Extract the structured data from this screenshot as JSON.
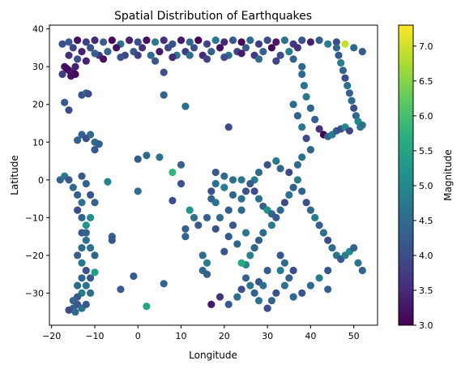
{
  "chart_data": {
    "type": "scatter",
    "title": "Spatial Distribution of Earthquakes",
    "xlabel": "Longitude",
    "ylabel": "Latitude",
    "xlim": [
      -20.5,
      55.5
    ],
    "ylim": [
      -38.5,
      41.0
    ],
    "xticks": [
      -20,
      -10,
      0,
      10,
      20,
      30,
      40,
      50
    ],
    "yticks": [
      -30,
      -20,
      -10,
      0,
      10,
      20,
      30,
      40
    ],
    "grid": false,
    "colormap": "viridis",
    "colorbar": {
      "label": "Magnitude",
      "range": [
        3.0,
        7.3
      ],
      "ticks": [
        3.0,
        3.5,
        4.0,
        4.5,
        5.0,
        5.5,
        6.0,
        6.5,
        7.0
      ],
      "tick_labels": [
        "3.0",
        "3.5",
        "4.0",
        "4.5",
        "5.0",
        "5.5",
        "6.0",
        "6.5",
        "7.0"
      ]
    },
    "points": [
      [
        -17.5,
        36,
        4.0
      ],
      [
        -16,
        36.5,
        4.2
      ],
      [
        -14,
        37,
        3.2
      ],
      [
        -12,
        36.5,
        3.8
      ],
      [
        -10,
        37,
        3.5
      ],
      [
        -8,
        36.5,
        4.3
      ],
      [
        -6,
        37,
        3.1
      ],
      [
        -4,
        36,
        4.6
      ],
      [
        -2,
        37,
        3.4
      ],
      [
        0,
        36.5,
        4.0
      ],
      [
        2,
        37,
        3.2
      ],
      [
        4,
        36.5,
        4.8
      ],
      [
        6,
        37,
        3.6
      ],
      [
        8,
        36,
        4.1
      ],
      [
        10,
        37,
        3.3
      ],
      [
        12,
        36.5,
        4.4
      ],
      [
        14,
        37,
        3.0
      ],
      [
        16,
        36,
        3.9
      ],
      [
        18,
        37,
        4.7
      ],
      [
        20,
        36.5,
        3.5
      ],
      [
        22,
        37,
        4.2
      ],
      [
        24,
        36.5,
        3.1
      ],
      [
        26,
        37,
        4.5
      ],
      [
        28,
        36,
        3.8
      ],
      [
        30,
        37,
        4.0
      ],
      [
        32,
        36.5,
        3.3
      ],
      [
        34,
        37,
        4.6
      ],
      [
        36,
        36,
        3.7
      ],
      [
        38,
        37,
        4.1
      ],
      [
        40,
        36.5,
        3.4
      ],
      [
        42,
        37,
        4.3
      ],
      [
        44,
        36,
        4.8
      ],
      [
        46,
        36.5,
        4.0
      ],
      [
        48,
        36,
        6.9
      ],
      [
        50,
        35,
        4.5
      ],
      [
        52,
        34,
        4.2
      ],
      [
        -15,
        35,
        3.9
      ],
      [
        -13,
        34,
        3.4
      ],
      [
        -11,
        35,
        4.1
      ],
      [
        -9,
        33,
        3.7
      ],
      [
        -7,
        34,
        4.4
      ],
      [
        -5,
        35,
        3.2
      ],
      [
        -3,
        33,
        3.9
      ],
      [
        -1,
        34,
        4.2
      ],
      [
        1,
        35,
        3.6
      ],
      [
        3,
        33,
        4.5
      ],
      [
        5,
        34,
        3.3
      ],
      [
        7,
        35,
        4.0
      ],
      [
        9,
        33,
        4.7
      ],
      [
        11,
        34,
        3.8
      ],
      [
        13,
        35,
        4.1
      ],
      [
        15,
        33,
        3.5
      ],
      [
        17,
        34,
        4.3
      ],
      [
        19,
        35,
        3.2
      ],
      [
        21,
        33,
        4.6
      ],
      [
        23,
        34,
        3.9
      ],
      [
        25,
        35,
        4.2
      ],
      [
        27,
        33,
        3.7
      ],
      [
        29,
        34,
        4.4
      ],
      [
        31,
        35,
        3.1
      ],
      [
        33,
        33,
        4.0
      ],
      [
        35,
        34,
        4.8
      ],
      [
        37,
        35,
        3.6
      ],
      [
        -16,
        33,
        3.6
      ],
      [
        -14,
        32,
        4.0
      ],
      [
        -12,
        31.5,
        3.4
      ],
      [
        -10,
        33.5,
        4.3
      ],
      [
        -8,
        32,
        3.2
      ],
      [
        -4,
        32.5,
        4.1
      ],
      [
        0,
        33,
        3.8
      ],
      [
        4,
        31.5,
        4.2
      ],
      [
        8,
        32.5,
        3.5
      ],
      [
        12,
        33,
        4.6
      ],
      [
        16,
        32,
        3.9
      ],
      [
        20,
        32.5,
        4.0
      ],
      [
        24,
        33.5,
        3.3
      ],
      [
        28,
        32,
        4.5
      ],
      [
        32,
        31.5,
        3.9
      ],
      [
        36,
        32,
        4.3
      ],
      [
        38,
        30,
        4.4
      ],
      [
        -17,
        30,
        3.3
      ],
      [
        -16,
        29,
        3.2
      ],
      [
        -15,
        28.5,
        3.3
      ],
      [
        -17.5,
        28,
        3.8
      ],
      [
        -16.5,
        29.5,
        3.1
      ],
      [
        -14.5,
        30,
        3.4
      ],
      [
        -15.5,
        27.5,
        3.2
      ],
      [
        -14.5,
        28,
        3.1
      ],
      [
        -17,
        20.5,
        4.2
      ],
      [
        -16,
        18.5,
        4.0
      ],
      [
        -13,
        22.5,
        4.1
      ],
      [
        -12,
        23,
        4.4
      ],
      [
        -11.5,
        22.8,
        4.0
      ],
      [
        6,
        28.5,
        4.1
      ],
      [
        6,
        22.5,
        4.3
      ],
      [
        11,
        19.5,
        4.6
      ],
      [
        46,
        35,
        4.5
      ],
      [
        46.5,
        33,
        4.2
      ],
      [
        47,
        31,
        4.8
      ],
      [
        47.5,
        29,
        4.4
      ],
      [
        48,
        27,
        4.0
      ],
      [
        48.5,
        25,
        4.6
      ],
      [
        49,
        23,
        4.3
      ],
      [
        49.5,
        21,
        4.5
      ],
      [
        50,
        19,
        4.1
      ],
      [
        50.5,
        17,
        4.4
      ],
      [
        51,
        15.5,
        5.0
      ],
      [
        51.5,
        14,
        4.7
      ],
      [
        52,
        14.5,
        4.6
      ],
      [
        38,
        28,
        4.5
      ],
      [
        38.5,
        25,
        4.6
      ],
      [
        39,
        22,
        4.7
      ],
      [
        40,
        19,
        4.4
      ],
      [
        41,
        16,
        4.3
      ],
      [
        42,
        13.5,
        3.6
      ],
      [
        43,
        12,
        3.0
      ],
      [
        44,
        11.5,
        4.4
      ],
      [
        45,
        12,
        4.8
      ],
      [
        46,
        13,
        4.2
      ],
      [
        47,
        13.5,
        4.0
      ],
      [
        48,
        14,
        5.0
      ],
      [
        49,
        13,
        3.9
      ],
      [
        36,
        20,
        4.5
      ],
      [
        37,
        17,
        4.3
      ],
      [
        38,
        14,
        4.7
      ],
      [
        39,
        11,
        4.0
      ],
      [
        40,
        8,
        4.4
      ],
      [
        38,
        6,
        4.6
      ],
      [
        37,
        4,
        4.5
      ],
      [
        35,
        2,
        4.0
      ],
      [
        33,
        3,
        4.4
      ],
      [
        32,
        5,
        4.7
      ],
      [
        30,
        4,
        4.1
      ],
      [
        28,
        2,
        4.5
      ],
      [
        27,
        0,
        4.8
      ],
      [
        26,
        -1,
        4.2
      ],
      [
        27,
        -3,
        4.0
      ],
      [
        28,
        -5,
        4.6
      ],
      [
        29,
        -7,
        4.3
      ],
      [
        30,
        -8,
        5.2
      ],
      [
        31,
        -9,
        4.4
      ],
      [
        21,
        14,
        4.0
      ],
      [
        24,
        -8,
        4.5
      ],
      [
        22,
        -12,
        4.2
      ],
      [
        25,
        -14,
        4.7
      ],
      [
        23,
        -17,
        4.4
      ],
      [
        25,
        -22.5,
        5.0
      ],
      [
        24,
        -22,
        5.6
      ],
      [
        26,
        -20,
        4.9
      ],
      [
        27,
        -18,
        4.4
      ],
      [
        28,
        -16,
        4.3
      ],
      [
        29,
        -14,
        4.5
      ],
      [
        31,
        -12,
        4.8
      ],
      [
        32,
        -10,
        4.2
      ],
      [
        33,
        -8,
        4.5
      ],
      [
        34,
        -6,
        4.0
      ],
      [
        35,
        -4,
        4.6
      ],
      [
        36,
        -2,
        4.3
      ],
      [
        37,
        0,
        4.7
      ],
      [
        38,
        -3,
        4.4
      ],
      [
        39,
        -6,
        4.1
      ],
      [
        40,
        -8,
        4.5
      ],
      [
        41,
        -10,
        4.8
      ],
      [
        42,
        -12,
        4.3
      ],
      [
        43,
        -14,
        4.6
      ],
      [
        44,
        -16,
        4.0
      ],
      [
        45,
        -18,
        4.5
      ],
      [
        46,
        -20,
        4.7
      ],
      [
        47,
        -21,
        4.2
      ],
      [
        48,
        -20,
        4.8
      ],
      [
        49,
        -19,
        5.0
      ],
      [
        50,
        -18,
        4.3
      ],
      [
        51,
        -22,
        4.6
      ],
      [
        52,
        -24,
        4.4
      ],
      [
        33,
        -20,
        4.2
      ],
      [
        34,
        -22,
        4.5
      ],
      [
        33,
        -24,
        4.8
      ],
      [
        35,
        -26,
        4.3
      ],
      [
        34,
        -28,
        4.6
      ],
      [
        32,
        -30,
        4.1
      ],
      [
        31,
        -32,
        4.4
      ],
      [
        30,
        -34,
        4.0
      ],
      [
        28,
        -32,
        4.6
      ],
      [
        27,
        -30,
        4.3
      ],
      [
        26,
        -28,
        4.7
      ],
      [
        25,
        -26,
        4.4
      ],
      [
        24,
        -29,
        4.0
      ],
      [
        23,
        -31,
        4.5
      ],
      [
        21,
        -33,
        4.2
      ],
      [
        19,
        -31,
        3.6
      ],
      [
        17,
        -33,
        3.3
      ],
      [
        28,
        -27,
        4.2
      ],
      [
        29,
        -28,
        4.6
      ],
      [
        36,
        -31,
        4.4
      ],
      [
        38,
        -30,
        4.1
      ],
      [
        40,
        -28,
        4.5
      ],
      [
        42,
        -26,
        4.8
      ],
      [
        44,
        -24,
        4.2
      ],
      [
        44,
        -29,
        4.3
      ],
      [
        30,
        -24,
        4.3
      ],
      [
        36,
        -24,
        4.0
      ],
      [
        11,
        -15,
        4.4
      ],
      [
        11,
        -13,
        4.3
      ],
      [
        12,
        -8,
        5.2
      ],
      [
        13,
        -10,
        4.6
      ],
      [
        15,
        -20,
        4.5
      ],
      [
        16,
        -22,
        4.8
      ],
      [
        15,
        -24,
        4.5
      ],
      [
        16,
        -25,
        4.3
      ],
      [
        14,
        -12,
        4.2
      ],
      [
        17,
        -5,
        4.4
      ],
      [
        17,
        -3,
        4.1
      ],
      [
        18,
        -1,
        4.6
      ],
      [
        18,
        2,
        4.2
      ],
      [
        20,
        1,
        4.5
      ],
      [
        16,
        -10,
        4.3
      ],
      [
        18,
        -6,
        4.6
      ],
      [
        20,
        -2,
        4.8
      ],
      [
        22,
        0,
        4.5
      ],
      [
        24,
        0,
        4.7
      ],
      [
        25,
        -3,
        4.1
      ],
      [
        24,
        -5,
        4.6
      ],
      [
        22,
        -4,
        4.4
      ],
      [
        21,
        -8,
        4.3
      ],
      [
        19,
        -10,
        4.5
      ],
      [
        18,
        -13,
        4.1
      ],
      [
        21,
        -15,
        4.2
      ],
      [
        20,
        -19,
        4.1
      ],
      [
        -18,
        0,
        4.4
      ],
      [
        -17,
        1,
        4.7
      ],
      [
        -16,
        0,
        4.2
      ],
      [
        -15,
        -2,
        4.5
      ],
      [
        -14,
        -4,
        4.3
      ],
      [
        -13,
        -6,
        4.6
      ],
      [
        -14,
        -8,
        4.0
      ],
      [
        -13,
        -10,
        4.4
      ],
      [
        -12,
        -12,
        5.2
      ],
      [
        -13,
        -14,
        4.2
      ],
      [
        -12,
        -16,
        4.6
      ],
      [
        -13,
        -18,
        4.5
      ],
      [
        -14,
        -20,
        4.3
      ],
      [
        -13,
        -22,
        4.7
      ],
      [
        -12,
        -24,
        4.1
      ],
      [
        -13,
        -26,
        4.4
      ],
      [
        -14,
        -28,
        4.5
      ],
      [
        -13,
        -30,
        4.8
      ],
      [
        -14,
        -31,
        4.2
      ],
      [
        -15,
        -32,
        4.4
      ],
      [
        -14,
        -33,
        4.1
      ],
      [
        -13,
        -34,
        4.6
      ],
      [
        -15,
        -34,
        4.3
      ],
      [
        -16,
        -34.5,
        4.0
      ],
      [
        -14.5,
        -35,
        4.5
      ],
      [
        -12,
        -33,
        4.2
      ],
      [
        -11,
        -30,
        4.5
      ],
      [
        -12,
        -28,
        4.7
      ],
      [
        -11,
        -26,
        4.2
      ],
      [
        -10,
        -24.5,
        5.4
      ],
      [
        -10,
        -20,
        4.4
      ],
      [
        -11,
        -18,
        4.6
      ],
      [
        -12,
        -14,
        4.4
      ],
      [
        -11,
        -10,
        5.1
      ],
      [
        -10,
        -6,
        4.4
      ],
      [
        -11,
        -4,
        4.1
      ],
      [
        -12,
        -1,
        4.4
      ],
      [
        -13,
        1,
        4.2
      ],
      [
        -13,
        12,
        4.3
      ],
      [
        -14,
        10.5,
        4.4
      ],
      [
        -12,
        11,
        4.0
      ],
      [
        -10,
        10,
        4.5
      ],
      [
        -9,
        9.5,
        4.3
      ],
      [
        -10,
        8,
        4.2
      ],
      [
        -11,
        12,
        4.5
      ],
      [
        -7,
        -0.5,
        4.9
      ],
      [
        -6,
        -15,
        4.3
      ],
      [
        -6,
        -16,
        4.2
      ],
      [
        -4,
        -29,
        4.2
      ],
      [
        -1,
        -25.5,
        4.3
      ],
      [
        0,
        -3,
        4.5
      ],
      [
        0,
        5.5,
        4.2
      ],
      [
        2,
        6.5,
        4.5
      ],
      [
        5,
        6,
        4.6
      ],
      [
        6,
        -27.5,
        4.4
      ],
      [
        8,
        2,
        5.8
      ],
      [
        8,
        -5.5,
        4.0
      ],
      [
        10,
        4,
        4.4
      ],
      [
        10,
        -1,
        4.1
      ],
      [
        2,
        -33.5,
        5.5
      ]
    ]
  }
}
